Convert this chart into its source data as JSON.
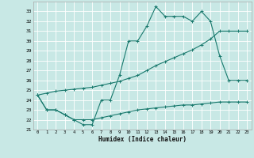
{
  "title": "",
  "xlabel": "Humidex (Indice chaleur)",
  "ylabel": "",
  "bg_color": "#c8e8e5",
  "grid_color": "#ffffff",
  "line_color": "#1a7a6e",
  "xlim": [
    -0.5,
    23.5
  ],
  "ylim": [
    21,
    34
  ],
  "xticks": [
    0,
    1,
    2,
    3,
    4,
    5,
    6,
    7,
    8,
    9,
    10,
    11,
    12,
    13,
    14,
    15,
    16,
    17,
    18,
    19,
    20,
    21,
    22,
    23
  ],
  "yticks": [
    21,
    22,
    23,
    24,
    25,
    26,
    27,
    28,
    29,
    30,
    31,
    32,
    33
  ],
  "line1_x": [
    0,
    1,
    2,
    3,
    4,
    5,
    6,
    7,
    8,
    9,
    10,
    11,
    12,
    13,
    14,
    15,
    16,
    17,
    18,
    19,
    20,
    21,
    22,
    23
  ],
  "line1_y": [
    24.5,
    23.0,
    23.0,
    22.5,
    22.0,
    21.5,
    21.5,
    24.0,
    24.0,
    26.5,
    30.0,
    30.0,
    31.5,
    33.5,
    32.5,
    32.5,
    32.5,
    32.0,
    33.0,
    32.0,
    28.5,
    26.0,
    26.0,
    26.0
  ],
  "line2_x": [
    0,
    1,
    2,
    3,
    4,
    5,
    6,
    7,
    8,
    9,
    10,
    11,
    12,
    13,
    14,
    15,
    16,
    17,
    18,
    19,
    20,
    21,
    22,
    23
  ],
  "line2_y": [
    24.5,
    24.7,
    24.9,
    25.0,
    25.1,
    25.2,
    25.3,
    25.5,
    25.7,
    25.9,
    26.2,
    26.5,
    27.0,
    27.5,
    27.9,
    28.3,
    28.7,
    29.1,
    29.6,
    30.2,
    31.0,
    31.0,
    31.0,
    31.0
  ],
  "line3_x": [
    0,
    1,
    2,
    3,
    4,
    5,
    6,
    7,
    8,
    9,
    10,
    11,
    12,
    13,
    14,
    15,
    16,
    17,
    18,
    19,
    20,
    21,
    22,
    23
  ],
  "line3_y": [
    24.5,
    23.0,
    23.0,
    22.5,
    22.0,
    22.0,
    22.0,
    22.2,
    22.4,
    22.6,
    22.8,
    23.0,
    23.1,
    23.2,
    23.3,
    23.4,
    23.5,
    23.5,
    23.6,
    23.7,
    23.8,
    23.8,
    23.8,
    23.8
  ]
}
